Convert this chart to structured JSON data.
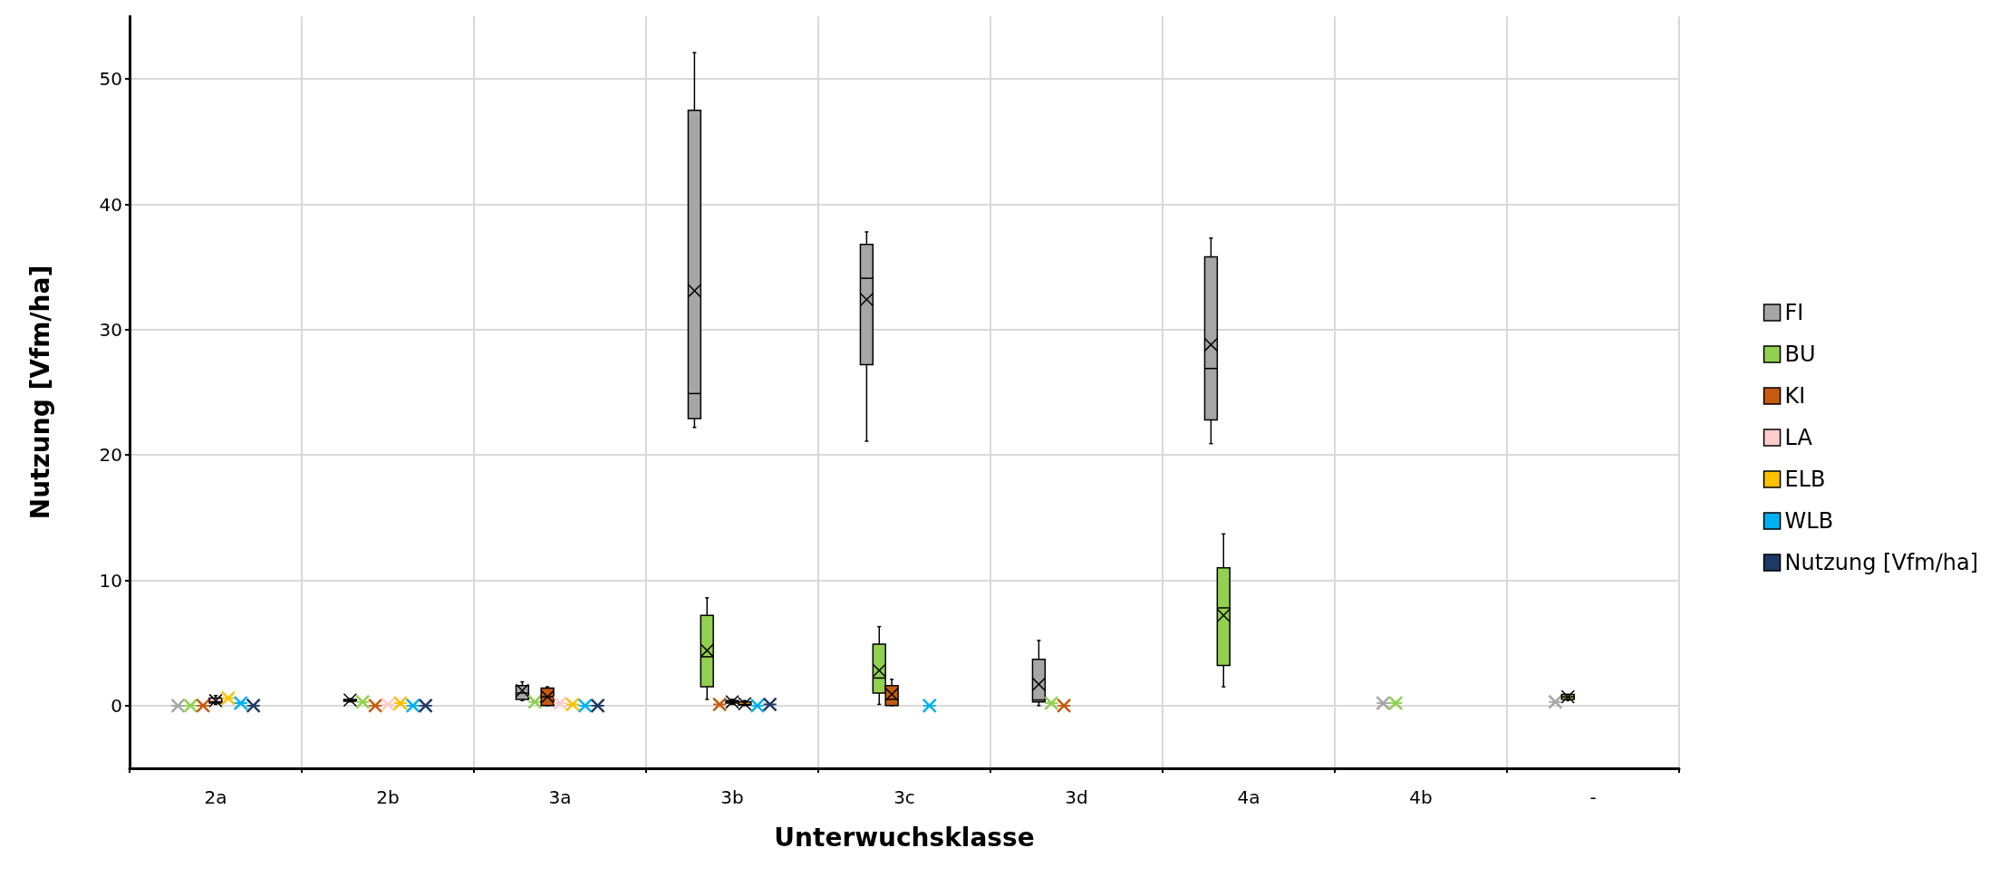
{
  "chart_data": {
    "type": "box",
    "xlabel": "Unterwuchsklasse",
    "ylabel": "Nutzung [Vfm/ha]",
    "categories": [
      "2a",
      "2b",
      "3a",
      "3b",
      "3c",
      "3d",
      "4a",
      "4b",
      "-"
    ],
    "ylim": [
      -5,
      55
    ],
    "yticks": [
      0,
      10,
      20,
      30,
      40,
      50
    ],
    "grid": true,
    "legend": "right",
    "series": [
      {
        "name": "FI",
        "color": "#a6a6a6",
        "boxes": [
          {
            "low": 0,
            "q1": 0,
            "median": 0,
            "q3": 0,
            "high": 0,
            "mean": 0
          },
          {
            "low": 0.3,
            "q1": 0.35,
            "median": 0.4,
            "q3": 0.5,
            "high": 0.55,
            "mean": 0.45
          },
          {
            "low": 0.4,
            "q1": 0.5,
            "median": 1.0,
            "q3": 1.6,
            "high": 1.9,
            "mean": 1.2
          },
          {
            "low": 22.2,
            "q1": 22.9,
            "median": 24.9,
            "q3": 47.5,
            "high": 52.1,
            "mean": 33.1
          },
          {
            "low": 21.1,
            "q1": 27.2,
            "median": 34.1,
            "q3": 36.8,
            "high": 37.8,
            "mean": 32.4
          },
          {
            "low": 0,
            "q1": 0.3,
            "median": 0.45,
            "q3": 3.7,
            "high": 5.2,
            "mean": 1.7
          },
          {
            "low": 20.9,
            "q1": 22.8,
            "median": 26.9,
            "q3": 35.8,
            "high": 37.3,
            "mean": 28.8
          },
          {
            "low": 0.2,
            "q1": 0.2,
            "median": 0.2,
            "q3": 0.2,
            "high": 0.2,
            "mean": 0.2
          },
          {
            "low": 0.3,
            "q1": 0.3,
            "median": 0.3,
            "q3": 0.3,
            "high": 0.3,
            "mean": 0.3
          }
        ]
      },
      {
        "name": "BU",
        "color": "#92d050",
        "boxes": [
          {
            "low": 0,
            "q1": 0,
            "median": 0,
            "q3": 0,
            "high": 0,
            "mean": 0
          },
          {
            "low": 0.3,
            "q1": 0.3,
            "median": 0.3,
            "q3": 0.3,
            "high": 0.3,
            "mean": 0.3
          },
          {
            "low": 0.3,
            "q1": 0.3,
            "median": 0.3,
            "q3": 0.3,
            "high": 0.3,
            "mean": 0.3
          },
          {
            "low": 0.5,
            "q1": 1.5,
            "median": 3.9,
            "q3": 7.2,
            "high": 8.6,
            "mean": 4.4
          },
          {
            "low": 0.1,
            "q1": 1.0,
            "median": 2.2,
            "q3": 4.9,
            "high": 6.3,
            "mean": 2.8
          },
          {
            "low": 0.2,
            "q1": 0.2,
            "median": 0.2,
            "q3": 0.2,
            "high": 0.2,
            "mean": 0.2
          },
          {
            "low": 1.5,
            "q1": 3.2,
            "median": 7.8,
            "q3": 11.0,
            "high": 13.7,
            "mean": 7.2
          },
          {
            "low": 0.2,
            "q1": 0.2,
            "median": 0.2,
            "q3": 0.2,
            "high": 0.2,
            "mean": 0.2
          },
          {
            "low": 0.4,
            "q1": 0.5,
            "median": 0.7,
            "q3": 0.9,
            "high": 0.9,
            "mean": 0.7
          }
        ]
      },
      {
        "name": "KI",
        "color": "#c55a11",
        "boxes": [
          {
            "low": 0,
            "q1": 0,
            "median": 0,
            "q3": 0,
            "high": 0,
            "mean": 0
          },
          {
            "low": 0,
            "q1": 0,
            "median": 0,
            "q3": 0,
            "high": 0,
            "mean": 0
          },
          {
            "low": 0,
            "q1": 0,
            "median": 0.7,
            "q3": 1.4,
            "high": 1.5,
            "mean": 0.7
          },
          {
            "low": 0.1,
            "q1": 0.1,
            "median": 0.1,
            "q3": 0.1,
            "high": 0.1,
            "mean": 0.1
          },
          {
            "low": 0,
            "q1": 0,
            "median": 0.5,
            "q3": 1.6,
            "high": 2.1,
            "mean": 0.9
          },
          {
            "low": 0,
            "q1": 0,
            "median": 0,
            "q3": 0,
            "high": 0,
            "mean": 0
          },
          null,
          null,
          null
        ]
      },
      {
        "name": "LA",
        "color": "#ffcccc",
        "boxes": [
          {
            "low": 0.1,
            "q1": 0.2,
            "median": 0.3,
            "q3": 0.6,
            "high": 0.8,
            "mean": 0.4
          },
          {
            "low": 0.1,
            "q1": 0.1,
            "median": 0.1,
            "q3": 0.1,
            "high": 0.1,
            "mean": 0.1
          },
          {
            "low": 0.2,
            "q1": 0.2,
            "median": 0.2,
            "q3": 0.2,
            "high": 0.2,
            "mean": 0.2
          },
          {
            "low": 0.1,
            "q1": 0.2,
            "median": 0.3,
            "q3": 0.4,
            "high": 0.5,
            "mean": 0.3
          },
          null,
          null,
          null,
          null,
          null
        ]
      },
      {
        "name": "ELB",
        "color": "#ffc000",
        "boxes": [
          {
            "low": 0.6,
            "q1": 0.6,
            "median": 0.6,
            "q3": 0.6,
            "high": 0.6,
            "mean": 0.6
          },
          {
            "low": 0.2,
            "q1": 0.2,
            "median": 0.2,
            "q3": 0.2,
            "high": 0.2,
            "mean": 0.2
          },
          {
            "low": 0.1,
            "q1": 0.1,
            "median": 0.1,
            "q3": 0.1,
            "high": 0.1,
            "mean": 0.1
          },
          {
            "low": 0,
            "q1": 0.05,
            "median": 0.1,
            "q3": 0.3,
            "high": 0.4,
            "mean": 0.15
          },
          null,
          null,
          null,
          null,
          null
        ]
      },
      {
        "name": "WLB",
        "color": "#00b0f0",
        "boxes": [
          {
            "low": 0.2,
            "q1": 0.2,
            "median": 0.2,
            "q3": 0.2,
            "high": 0.2,
            "mean": 0.2
          },
          {
            "low": 0,
            "q1": 0,
            "median": 0,
            "q3": 0,
            "high": 0,
            "mean": 0
          },
          {
            "low": 0,
            "q1": 0,
            "median": 0,
            "q3": 0,
            "high": 0,
            "mean": 0
          },
          {
            "low": 0,
            "q1": 0,
            "median": 0,
            "q3": 0,
            "high": 0,
            "mean": 0
          },
          {
            "low": 0,
            "q1": 0,
            "median": 0,
            "q3": 0,
            "high": 0,
            "mean": 0
          },
          null,
          null,
          null,
          null
        ]
      },
      {
        "name": "Nutzung [Vfm/ha]",
        "color": "#1f3864",
        "boxes": [
          {
            "low": 0,
            "q1": 0,
            "median": 0,
            "q3": 0,
            "high": 0,
            "mean": 0
          },
          {
            "low": 0,
            "q1": 0,
            "median": 0,
            "q3": 0,
            "high": 0,
            "mean": 0
          },
          {
            "low": 0,
            "q1": 0,
            "median": 0,
            "q3": 0,
            "high": 0,
            "mean": 0
          },
          {
            "low": 0.1,
            "q1": 0.1,
            "median": 0.1,
            "q3": 0.1,
            "high": 0.1,
            "mean": 0.1
          },
          null,
          null,
          null,
          null,
          null
        ]
      }
    ]
  }
}
